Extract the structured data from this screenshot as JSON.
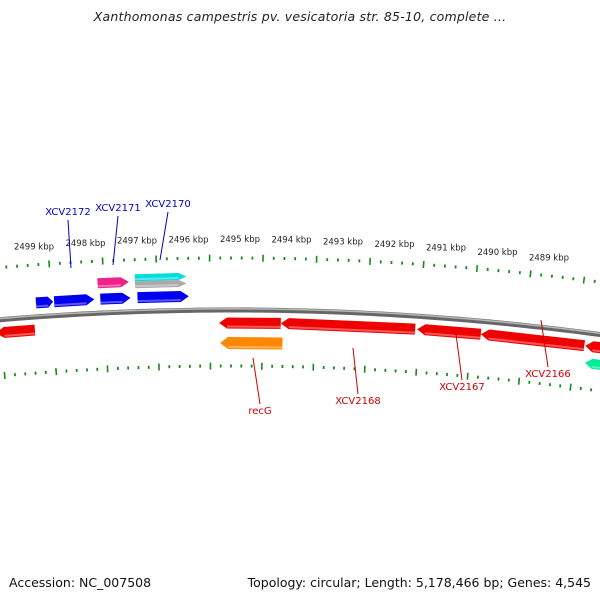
{
  "header": {
    "title": "Xanthomonas campestris pv. vesicatoria str. 85-10, complete ..."
  },
  "footer": {
    "accession": "Accession: NC_007508",
    "summary": "Topology: circular; Length: 5,178,466 bp; Genes: 4,545"
  },
  "colors": {
    "backbone": "#888888",
    "ticks": "#1a8a1a",
    "label_forward": "#0000cc",
    "label_reverse": "#cc0000"
  },
  "scale_labels": [
    "2499 kbp",
    "2498 kbp",
    "2497 kbp",
    "2496 kbp",
    "2495 kbp",
    "2494 kbp",
    "2493 kbp",
    "2492 kbp",
    "2491 kbp",
    "2490 kbp",
    "2489 kbp"
  ],
  "gene_labels": {
    "forward": [
      "XCV2172",
      "XCV2171",
      "XCV2170"
    ],
    "reverse": [
      "recG",
      "XCV2168",
      "XCV2167",
      "XCV2166"
    ]
  },
  "features": {
    "forward": [
      {
        "color": "#0000ee"
      },
      {
        "color": "#0000ee"
      },
      {
        "color": "#0000ee"
      },
      {
        "color": "#0000ee"
      },
      {
        "color": "#ee2288"
      },
      {
        "color": "#00dddd"
      },
      {
        "color": "#aaaaaa"
      }
    ],
    "reverse": [
      {
        "color": "#ee0000"
      },
      {
        "color": "#ee0000"
      },
      {
        "color": "#ee0000"
      },
      {
        "color": "#ee0000"
      },
      {
        "color": "#ee0000"
      },
      {
        "color": "#ee0000"
      },
      {
        "color": "#ff8800"
      },
      {
        "color": "#00ee99"
      }
    ]
  }
}
